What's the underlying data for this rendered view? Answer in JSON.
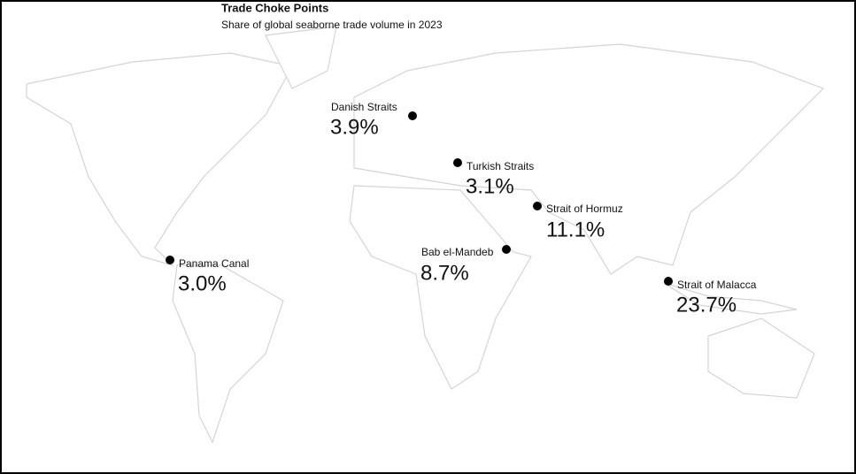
{
  "header": {
    "title": "Trade Choke Points",
    "subtitle": "Share of global seaborne trade volume in 2023"
  },
  "points": [
    {
      "name": "Danish Straits",
      "share": "3.9%"
    },
    {
      "name": "Turkish Straits",
      "share": "3.1%"
    },
    {
      "name": "Strait of Hormuz",
      "share": "11.1%"
    },
    {
      "name": "Bab el-Mandeb",
      "share": "8.7%"
    },
    {
      "name": "Panama Canal",
      "share": "3.0%"
    },
    {
      "name": "Strait of Malacca",
      "share": "23.7%"
    }
  ]
}
